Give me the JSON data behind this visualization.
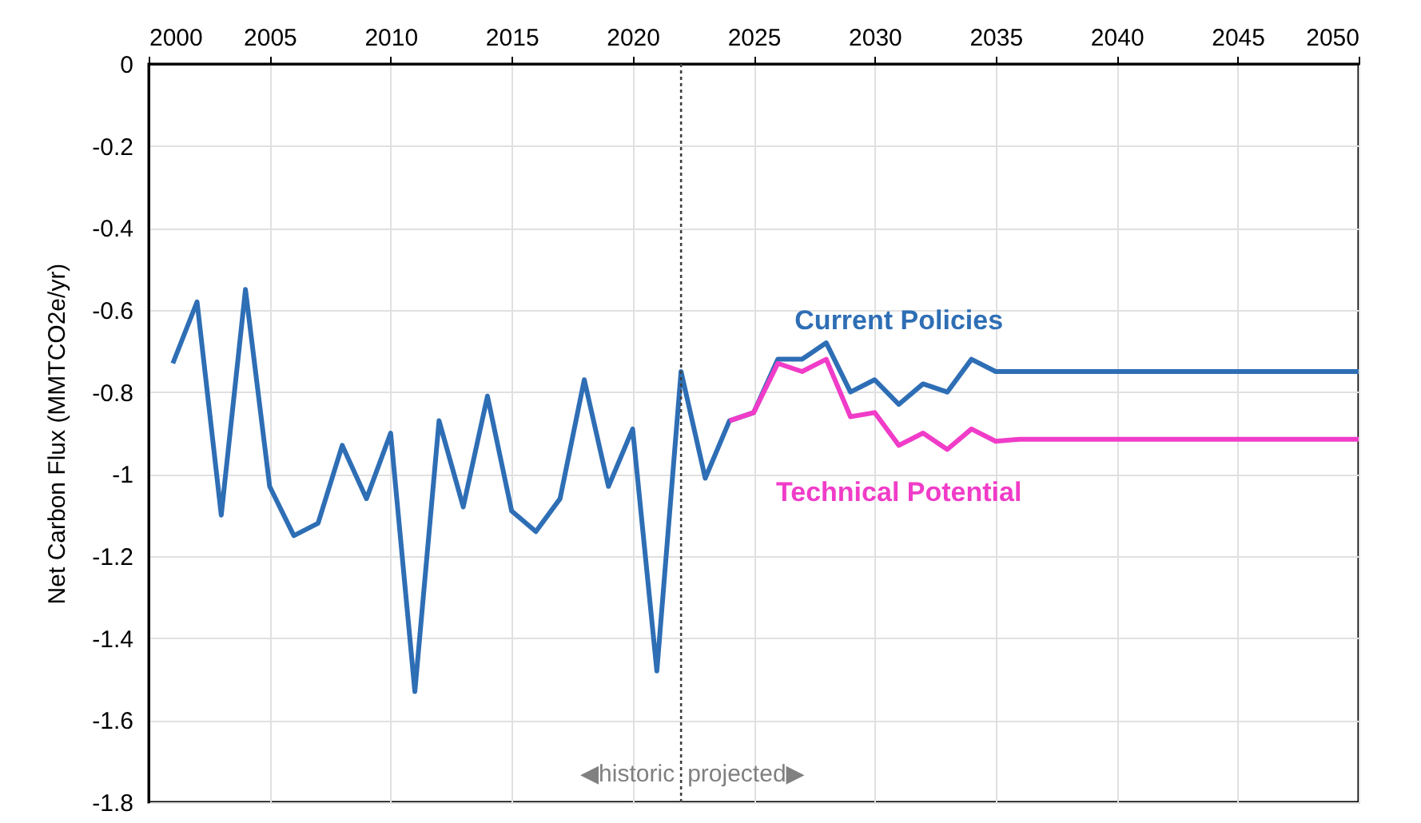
{
  "chart_data": {
    "type": "line",
    "ylabel": "Net Carbon Flux (MMTCO2e/yr)",
    "xlim": [
      2000,
      2050
    ],
    "xticks": [
      2000,
      2005,
      2010,
      2015,
      2020,
      2025,
      2030,
      2035,
      2040,
      2045,
      2050
    ],
    "ylim": [
      -1.8,
      0
    ],
    "yticks": [
      0,
      -0.2,
      -0.4,
      -0.6,
      -0.8,
      -1,
      -1.2,
      -1.4,
      -1.6,
      -1.8
    ],
    "grid": true,
    "legend": false,
    "line_style": "solid",
    "marker": "none",
    "series": [
      {
        "name": "Current Policies",
        "color": "#2e6eb5",
        "x": [
          2001,
          2002,
          2003,
          2004,
          2005,
          2006,
          2007,
          2008,
          2009,
          2010,
          2011,
          2012,
          2013,
          2014,
          2015,
          2016,
          2017,
          2018,
          2019,
          2020,
          2021,
          2022,
          2023,
          2024,
          2025,
          2026,
          2027,
          2028,
          2029,
          2030,
          2031,
          2032,
          2033,
          2034,
          2035,
          2040,
          2045,
          2050
        ],
        "values": [
          -0.73,
          -0.58,
          -1.1,
          -0.55,
          -1.03,
          -1.15,
          -1.12,
          -0.93,
          -1.06,
          -0.9,
          -1.53,
          -0.87,
          -1.08,
          -0.81,
          -1.09,
          -1.14,
          -1.06,
          -0.77,
          -1.03,
          -0.89,
          -1.48,
          -0.75,
          -1.01,
          -0.87,
          -0.85,
          -0.72,
          -0.72,
          -0.68,
          -0.8,
          -0.77,
          -0.83,
          -0.78,
          -0.8,
          -0.72,
          -0.75,
          -0.75,
          -0.75,
          -0.75
        ]
      },
      {
        "name": "Technical Potential",
        "color": "#f03cc8",
        "x": [
          2024,
          2025,
          2026,
          2027,
          2028,
          2029,
          2030,
          2031,
          2032,
          2033,
          2034,
          2035,
          2036,
          2040,
          2045,
          2050
        ],
        "values": [
          -0.87,
          -0.85,
          -0.73,
          -0.75,
          -0.72,
          -0.86,
          -0.85,
          -0.93,
          -0.9,
          -0.94,
          -0.89,
          -0.92,
          -0.915,
          -0.915,
          -0.915,
          -0.915
        ]
      }
    ],
    "ref_lines": [
      {
        "axis": "x",
        "value": 2022,
        "color": "#404040",
        "line_style": "dotted"
      }
    ],
    "annotations": [
      "◀historic",
      "projected▶"
    ]
  }
}
